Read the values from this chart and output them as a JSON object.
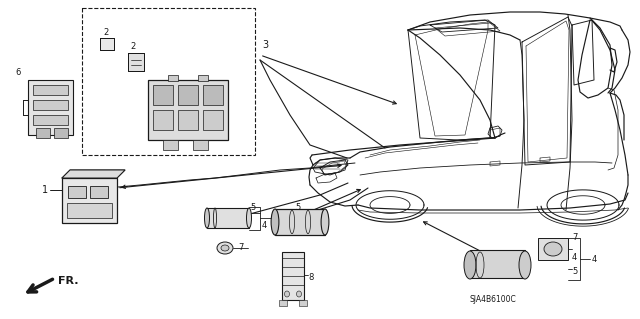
{
  "background_color": "#ffffff",
  "line_color": "#1a1a1a",
  "figsize": [
    6.4,
    3.19
  ],
  "dpi": 100,
  "part_code": "SJA4B6100C",
  "fr_text": "FR."
}
